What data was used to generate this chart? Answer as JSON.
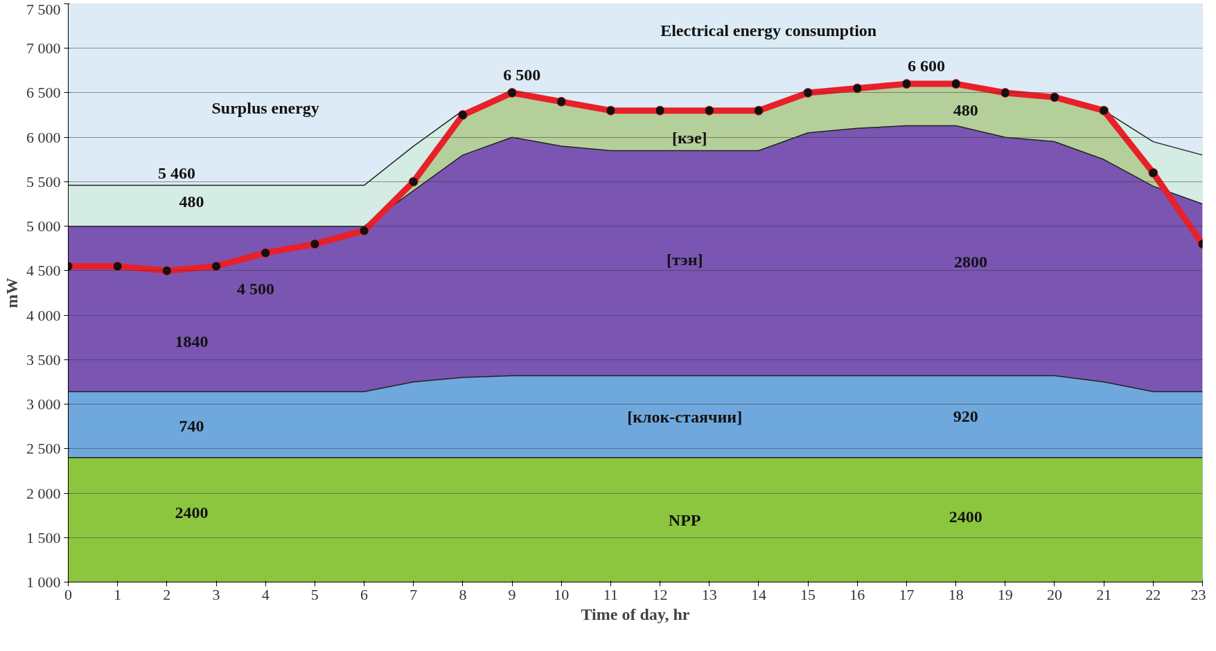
{
  "chart_data": {
    "type": "area",
    "xlabel": "Time of day, hr",
    "ylabel": "mW",
    "x": [
      0,
      1,
      2,
      3,
      4,
      5,
      6,
      7,
      8,
      9,
      10,
      11,
      12,
      13,
      14,
      15,
      16,
      17,
      18,
      19,
      20,
      21,
      22,
      23
    ],
    "xlim": [
      0,
      23
    ],
    "ylim": [
      1000,
      7500
    ],
    "xticks": [
      0,
      1,
      2,
      3,
      4,
      5,
      6,
      7,
      8,
      9,
      10,
      11,
      12,
      13,
      14,
      15,
      16,
      17,
      18,
      19,
      20,
      21,
      22,
      23
    ],
    "yticks": [
      {
        "value": 1000,
        "label": "1 000"
      },
      {
        "value": 1500,
        "label": "1 500"
      },
      {
        "value": 2000,
        "label": "2 000"
      },
      {
        "value": 2500,
        "label": "2 500"
      },
      {
        "value": 3000,
        "label": "3 000"
      },
      {
        "value": 3500,
        "label": "3 500"
      },
      {
        "value": 4000,
        "label": "4 000"
      },
      {
        "value": 4500,
        "label": "4 500"
      },
      {
        "value": 5000,
        "label": "5 000"
      },
      {
        "value": 5500,
        "label": "5 500"
      },
      {
        "value": 6000,
        "label": "6 000"
      },
      {
        "value": 6500,
        "label": "6 500"
      },
      {
        "value": 7000,
        "label": "7 000"
      },
      {
        "value": 7500,
        "label": "7 500"
      }
    ],
    "grid": "y",
    "series": [
      {
        "color": "#d4ece4",
        "x": [
          0,
          1,
          2,
          3,
          4,
          5,
          6,
          7,
          8
        ],
        "values": [
          5460,
          5460,
          5460,
          5460,
          5460,
          5460,
          5460,
          5900,
          6300
        ]
      },
      {
        "color": "#d4ece4",
        "x": [
          21,
          22,
          23
        ],
        "values": [
          6300,
          5950,
          5800
        ]
      },
      {
        "color": "#b5cf9a",
        "values": [
          4550,
          4550,
          4500,
          4550,
          4700,
          4800,
          4950,
          5500,
          6250,
          6500,
          6400,
          6300,
          6300,
          6300,
          6300,
          6500,
          6550,
          6600,
          6600,
          6500,
          6450,
          6300,
          5600,
          4800
        ]
      },
      {
        "color": "#7b55b2",
        "values": [
          5000,
          5000,
          5000,
          5000,
          5000,
          5000,
          5000,
          5400,
          5800,
          6000,
          5900,
          5850,
          5850,
          5850,
          5850,
          6050,
          6100,
          6130,
          6130,
          6000,
          5950,
          5750,
          5450,
          5250
        ]
      },
      {
        "color": "#6fa8dc",
        "values": [
          3140,
          3140,
          3140,
          3140,
          3140,
          3140,
          3140,
          3250,
          3300,
          3320,
          3320,
          3320,
          3320,
          3320,
          3320,
          3320,
          3320,
          3320,
          3320,
          3320,
          3320,
          3250,
          3140,
          3140
        ]
      },
      {
        "color": "#8cc63f",
        "values": [
          2400,
          2400,
          2400,
          2400,
          2400,
          2400,
          2400,
          2400,
          2400,
          2400,
          2400,
          2400,
          2400,
          2400,
          2400,
          2400,
          2400,
          2400,
          2400,
          2400,
          2400,
          2400,
          2400,
          2400
        ]
      },
      {
        "type": "line",
        "color": "#e8202a",
        "marker": "circle",
        "values": [
          4550,
          4550,
          4500,
          4550,
          4700,
          4800,
          4950,
          5500,
          6250,
          6500,
          6400,
          6300,
          6300,
          6300,
          6300,
          6500,
          6550,
          6600,
          6600,
          6500,
          6450,
          6300,
          5600,
          4800
        ]
      }
    ],
    "annotations": [
      "Electrical energy consumption",
      "Surplus energy",
      "6 500",
      "6 600",
      "5 460",
      "480",
      "4 500",
      "1840",
      "740",
      "2400",
      "480",
      "2800",
      "920",
      "2400",
      "[кэе]",
      "[тэн]",
      "[клок-стаячии]",
      "NPP"
    ]
  }
}
